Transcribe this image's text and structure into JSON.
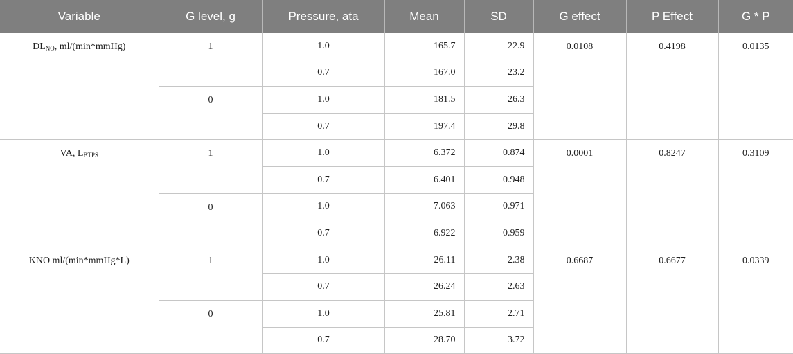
{
  "headers": [
    "Variable",
    "G level, g",
    "Pressure, ata",
    "Mean",
    "SD",
    "G effect",
    "P Effect",
    "G * P"
  ],
  "groups": [
    {
      "var_main": "DL",
      "var_sub": "NO",
      "var_rest": ", ml/(min*mmHg)",
      "g_effect": "0.0108",
      "p_effect": "0.4198",
      "gp": "0.0135",
      "levels": [
        {
          "g": "1",
          "rows": [
            {
              "p": "1.0",
              "mean": "165.7",
              "sd": "22.9"
            },
            {
              "p": "0.7",
              "mean": "167.0",
              "sd": "23.2"
            }
          ]
        },
        {
          "g": "0",
          "rows": [
            {
              "p": "1.0",
              "mean": "181.5",
              "sd": "26.3"
            },
            {
              "p": "0.7",
              "mean": "197.4",
              "sd": "29.8"
            }
          ]
        }
      ]
    },
    {
      "var_main": "VA, L",
      "var_sub": "BTPS",
      "var_rest": "",
      "g_effect": "0.0001",
      "p_effect": "0.8247",
      "gp": "0.3109",
      "levels": [
        {
          "g": "1",
          "rows": [
            {
              "p": "1.0",
              "mean": "6.372",
              "sd": "0.874"
            },
            {
              "p": "0.7",
              "mean": "6.401",
              "sd": "0.948"
            }
          ]
        },
        {
          "g": "0",
          "rows": [
            {
              "p": "1.0",
              "mean": "7.063",
              "sd": "0.971"
            },
            {
              "p": "0.7",
              "mean": "6.922",
              "sd": "0.959"
            }
          ]
        }
      ]
    },
    {
      "var_main": "KNO ml/(min*mmHg*L)",
      "var_sub": "",
      "var_rest": "",
      "g_effect": "0.6687",
      "p_effect": "0.6677",
      "gp": "0.0339",
      "levels": [
        {
          "g": "1",
          "rows": [
            {
              "p": "1.0",
              "mean": "26.11",
              "sd": "2.38"
            },
            {
              "p": "0.7",
              "mean": "26.24",
              "sd": "2.63"
            }
          ]
        },
        {
          "g": "0",
          "rows": [
            {
              "p": "1.0",
              "mean": "25.81",
              "sd": "2.71"
            },
            {
              "p": "0.7",
              "mean": "28.70",
              "sd": "3.72"
            }
          ]
        }
      ]
    }
  ]
}
